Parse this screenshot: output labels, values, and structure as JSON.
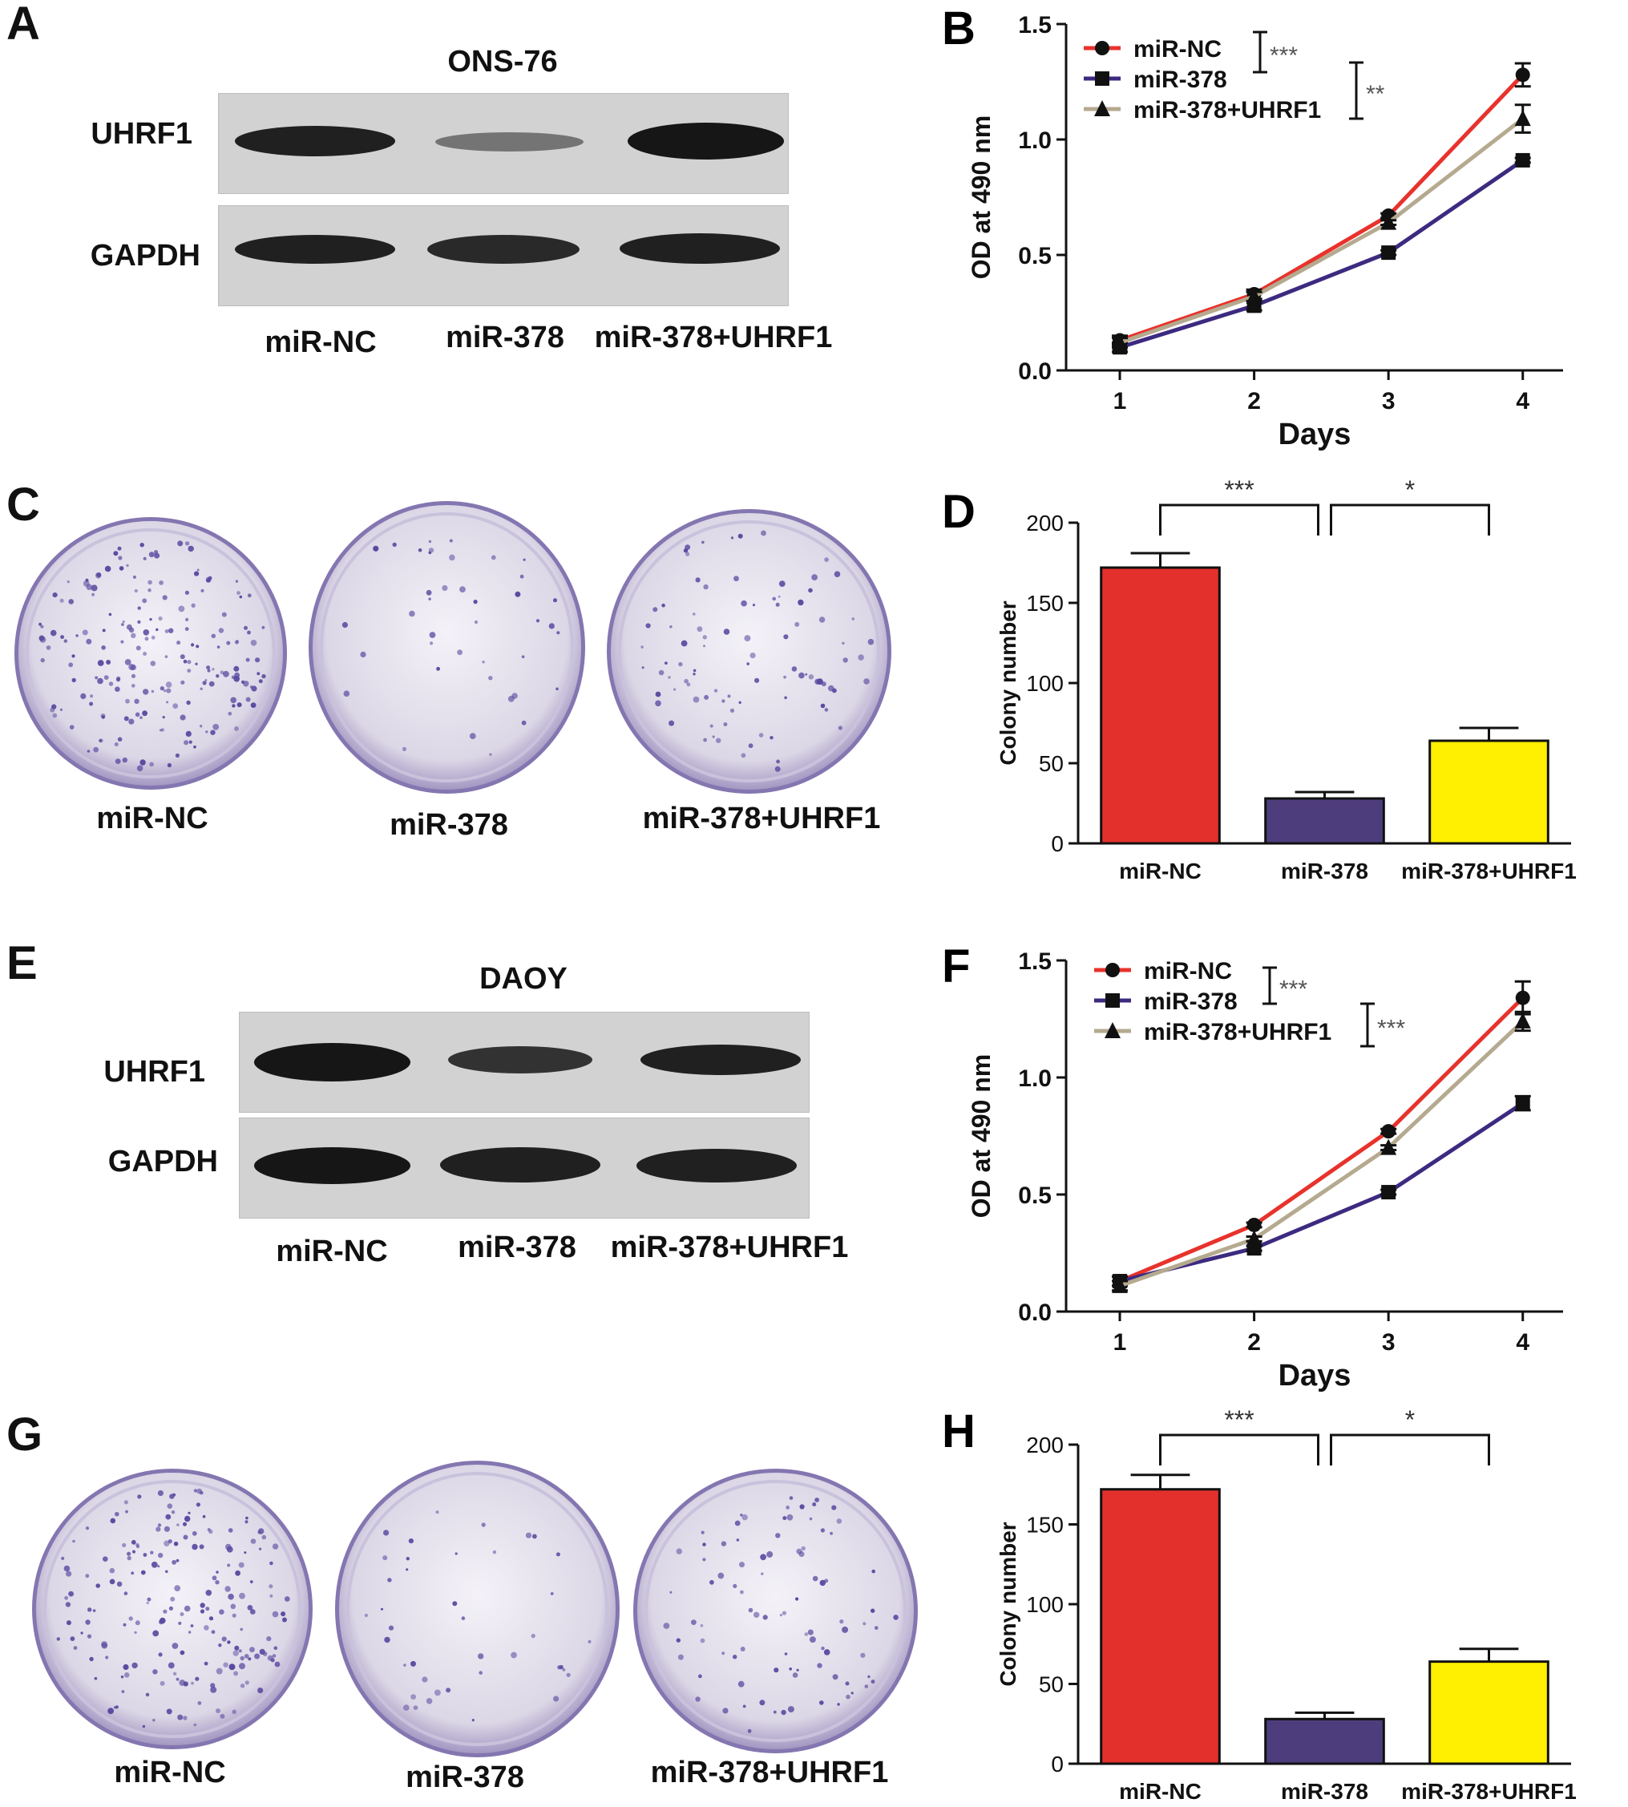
{
  "panels": {
    "A": {
      "letter": "A",
      "cell_line": "ONS-76",
      "rows": [
        "UHRF1",
        "GAPDH"
      ],
      "lanes": [
        "miR-NC",
        "miR-378",
        "miR-378+UHRF1"
      ],
      "band_intensity": {
        "UHRF1": [
          0.9,
          0.45,
          1.0
        ],
        "GAPDH": [
          0.9,
          0.85,
          0.9
        ]
      }
    },
    "C": {
      "letter": "C",
      "dishes": [
        "miR-NC",
        "miR-378",
        "miR-378+UHRF1"
      ],
      "colony_density": [
        1.0,
        0.2,
        0.45
      ]
    },
    "E": {
      "letter": "E",
      "cell_line": "DAOY",
      "rows": [
        "UHRF1",
        "GAPDH"
      ],
      "lanes": [
        "miR-NC",
        "miR-378",
        "miR-378+UHRF1"
      ],
      "band_intensity": {
        "UHRF1": [
          1.0,
          0.65,
          0.85
        ],
        "GAPDH": [
          1.0,
          0.9,
          0.85
        ]
      }
    },
    "G": {
      "letter": "G",
      "dishes": [
        "miR-NC",
        "miR-378",
        "miR-378+UHRF1"
      ],
      "colony_density": [
        1.0,
        0.2,
        0.45
      ]
    }
  },
  "colors": {
    "miR-NC": "#e8322c",
    "miR-378": "#3d2a80",
    "miR-378+UHRF1": "#b5a98f",
    "bar_miR-NC": "#e3302c",
    "bar_miR-378": "#4e3d7c",
    "bar_miR-378+UHRF1": "#ffef00",
    "dish_stain": "#5a4aa0"
  },
  "chart_data": [
    {
      "panel": "B",
      "type": "line",
      "xlabel": "Days",
      "ylabel": "OD at 490 nm",
      "x": [
        1,
        2,
        3,
        4
      ],
      "xlim": [
        0.6,
        4.3
      ],
      "ylim": [
        0,
        1.5
      ],
      "yticks": [
        "0.0",
        "0.5",
        "1.0",
        "1.5"
      ],
      "xticks": [
        "1",
        "2",
        "3",
        "4"
      ],
      "legend_position": "top-left",
      "series": [
        {
          "name": "miR-NC",
          "values": [
            0.13,
            0.33,
            0.67,
            1.28
          ],
          "err": [
            0.02,
            0.02,
            0.01,
            0.05
          ],
          "marker": "circle"
        },
        {
          "name": "miR-378",
          "values": [
            0.1,
            0.28,
            0.51,
            0.91
          ],
          "err": [
            0.02,
            0.02,
            0.01,
            0.01
          ],
          "marker": "square"
        },
        {
          "name": "miR-378+UHRF1",
          "values": [
            0.12,
            0.32,
            0.64,
            1.09
          ],
          "err": [
            0.02,
            0.02,
            0.01,
            0.06
          ],
          "marker": "triangle"
        }
      ],
      "annotations": [
        "***",
        "**"
      ]
    },
    {
      "panel": "D",
      "type": "bar",
      "ylabel": "Colony number",
      "categories": [
        "miR-NC",
        "miR-378",
        "miR-378+UHRF1"
      ],
      "values": [
        172,
        28,
        64
      ],
      "err": [
        9,
        4,
        8
      ],
      "ylim": [
        0,
        200
      ],
      "yticks": [
        "0",
        "50",
        "100",
        "150",
        "200"
      ],
      "annotations": [
        "***",
        "*"
      ]
    },
    {
      "panel": "F",
      "type": "line",
      "xlabel": "Days",
      "ylabel": "OD at 490 nm",
      "x": [
        1,
        2,
        3,
        4
      ],
      "xlim": [
        0.6,
        4.3
      ],
      "ylim": [
        0,
        1.5
      ],
      "yticks": [
        "0.0",
        "0.5",
        "1.0",
        "1.5"
      ],
      "xticks": [
        "1",
        "2",
        "3",
        "4"
      ],
      "legend_position": "top-left",
      "series": [
        {
          "name": "miR-NC",
          "values": [
            0.13,
            0.37,
            0.77,
            1.34
          ],
          "err": [
            0.02,
            0.01,
            0.01,
            0.07
          ],
          "marker": "circle"
        },
        {
          "name": "miR-378",
          "values": [
            0.13,
            0.27,
            0.51,
            0.89
          ],
          "err": [
            0.02,
            0.01,
            0.01,
            0.03
          ],
          "marker": "square"
        },
        {
          "name": "miR-378+UHRF1",
          "values": [
            0.11,
            0.31,
            0.7,
            1.24
          ],
          "err": [
            0.02,
            0.01,
            0.01,
            0.04
          ],
          "marker": "triangle"
        }
      ],
      "annotations": [
        "***",
        "***"
      ]
    },
    {
      "panel": "H",
      "type": "bar",
      "ylabel": "Colony number",
      "categories": [
        "miR-NC",
        "miR-378",
        "miR-378+UHRF1"
      ],
      "values": [
        172,
        28,
        64
      ],
      "err": [
        9,
        4,
        8
      ],
      "ylim": [
        0,
        200
      ],
      "yticks": [
        "0",
        "50",
        "100",
        "150",
        "200"
      ],
      "annotations": [
        "***",
        "*"
      ]
    }
  ]
}
